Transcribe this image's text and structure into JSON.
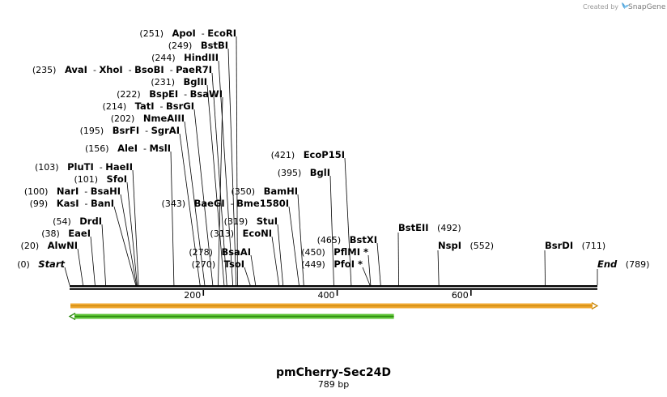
{
  "credit": {
    "prefix": "Created by",
    "brand": "SnapGene"
  },
  "plasmid": {
    "name": "pmCherry-Sec24D",
    "length_label": "789 bp",
    "length": 789
  },
  "axis": {
    "ticks": [
      200,
      400,
      600
    ],
    "tick_labels": [
      "200",
      "400",
      "600"
    ]
  },
  "colors": {
    "feature_orange": "#f0a830",
    "feature_orange_border": "#c98a10",
    "feature_green": "#58c030",
    "feature_green_border": "#2f8a12"
  },
  "features": [
    {
      "start": 1,
      "end": 789,
      "direction": "forward",
      "color": "orange"
    },
    {
      "start": 1,
      "end": 486,
      "direction": "reverse",
      "color": "green"
    }
  ],
  "sites": [
    {
      "pos": 251,
      "pos_label": "(251)",
      "names": [
        "ApoI",
        "EcoRI"
      ]
    },
    {
      "pos": 249,
      "pos_label": "(249)",
      "names": [
        "BstBI"
      ]
    },
    {
      "pos": 244,
      "pos_label": "(244)",
      "names": [
        "HindIII"
      ]
    },
    {
      "pos": 235,
      "pos_label": "(235)",
      "names": [
        "AvaI",
        "XhoI",
        "BsoBI",
        "PaeR7I"
      ]
    },
    {
      "pos": 231,
      "pos_label": "(231)",
      "names": [
        "BglII"
      ]
    },
    {
      "pos": 222,
      "pos_label": "(222)",
      "names": [
        "BspEI",
        "BsaWI"
      ]
    },
    {
      "pos": 214,
      "pos_label": "(214)",
      "names": [
        "TatI",
        "BsrGI"
      ]
    },
    {
      "pos": 202,
      "pos_label": "(202)",
      "names": [
        "NmeAIII"
      ]
    },
    {
      "pos": 195,
      "pos_label": "(195)",
      "names": [
        "BsrFI",
        "SgrAI"
      ]
    },
    {
      "pos": 156,
      "pos_label": "(156)",
      "names": [
        "AleI",
        "MslI"
      ]
    },
    {
      "pos": 103,
      "pos_label": "(103)",
      "names": [
        "PluTI",
        "HaeII"
      ]
    },
    {
      "pos": 101,
      "pos_label": "(101)",
      "names": [
        "SfoI"
      ]
    },
    {
      "pos": 100,
      "pos_label": "(100)",
      "names": [
        "NarI",
        "BsaHI"
      ]
    },
    {
      "pos": 99,
      "pos_label": "(99)",
      "names": [
        "KasI",
        "BanI"
      ]
    },
    {
      "pos": 54,
      "pos_label": "(54)",
      "names": [
        "DrdI"
      ]
    },
    {
      "pos": 38,
      "pos_label": "(38)",
      "names": [
        "EaeI"
      ]
    },
    {
      "pos": 20,
      "pos_label": "(20)",
      "names": [
        "AlwNI"
      ]
    },
    {
      "pos": 0,
      "pos_label": "(0)",
      "names": [
        "Start"
      ],
      "italic": true
    },
    {
      "pos": 343,
      "pos_label": "(343)",
      "names": [
        "BaeGI",
        "Bme1580I"
      ]
    },
    {
      "pos": 350,
      "pos_label": "(350)",
      "names": [
        "BamHI"
      ]
    },
    {
      "pos": 319,
      "pos_label": "(319)",
      "names": [
        "StuI"
      ]
    },
    {
      "pos": 313,
      "pos_label": "(313)",
      "names": [
        "EcoNI"
      ]
    },
    {
      "pos": 278,
      "pos_label": "(278)",
      "names": [
        "BsaAI"
      ]
    },
    {
      "pos": 270,
      "pos_label": "(270)",
      "names": [
        "TsoI"
      ]
    },
    {
      "pos": 421,
      "pos_label": "(421)",
      "names": [
        "EcoP15I"
      ]
    },
    {
      "pos": 395,
      "pos_label": "(395)",
      "names": [
        "BglI"
      ]
    },
    {
      "pos": 465,
      "pos_label": "(465)",
      "names": [
        "BstXI"
      ]
    },
    {
      "pos": 450,
      "pos_label": "(450)",
      "names": [
        "PflMI *"
      ]
    },
    {
      "pos": 449,
      "pos_label": "(449)",
      "names": [
        "PfoI *"
      ]
    },
    {
      "pos": 492,
      "pos_label": "(492)",
      "names": [
        "BstEII"
      ],
      "label_first": true
    },
    {
      "pos": 552,
      "pos_label": "(552)",
      "names": [
        "NspI"
      ],
      "label_first": true
    },
    {
      "pos": 711,
      "pos_label": "(711)",
      "names": [
        "BsrDI"
      ],
      "label_first": true
    },
    {
      "pos": 789,
      "pos_label": "(789)",
      "names": [
        "End"
      ],
      "label_first": true,
      "italic": true
    }
  ]
}
